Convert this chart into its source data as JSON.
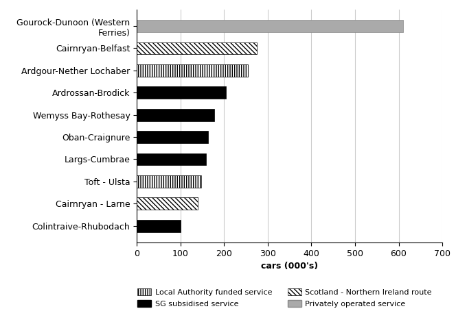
{
  "categories": [
    "Gourock-Dunoon (Western\nFerries)",
    "Cairnryan-Belfast",
    "Ardgour-Nether Lochaber",
    "Ardrossan-Brodick",
    "Wemyss Bay-Rothesay",
    "Oban-Craignure",
    "Largs-Cumbrae",
    "Toft - Ulsta",
    "Cairnryan - Larne",
    "Colintraive-Rhubodach"
  ],
  "values": [
    610,
    275,
    255,
    205,
    178,
    163,
    158,
    147,
    140,
    100
  ],
  "bar_types": [
    "privately",
    "ni_route",
    "la_funded",
    "sg_sub",
    "sg_sub",
    "sg_sub",
    "sg_sub",
    "la_funded",
    "ni_route",
    "sg_sub"
  ],
  "xlim": [
    0,
    700
  ],
  "xticks": [
    0,
    100,
    200,
    300,
    400,
    500,
    600,
    700
  ],
  "xlabel": "cars (000's)",
  "bar_height": 0.55,
  "sg_color": "#000000",
  "ni_color": "#ffffff",
  "la_color": "#ffffff",
  "privately_color": "#aaaaaa",
  "privately_edge": "#888888",
  "legend_col1": [
    {
      "label": "Local Authority funded service",
      "type": "la_funded"
    },
    {
      "label": "Scotland - Northern Ireland route",
      "type": "ni_route"
    }
  ],
  "legend_col2": [
    {
      "label": "SG subsidised service",
      "type": "sg_sub"
    },
    {
      "label": "Privately operated service",
      "type": "privately"
    }
  ]
}
